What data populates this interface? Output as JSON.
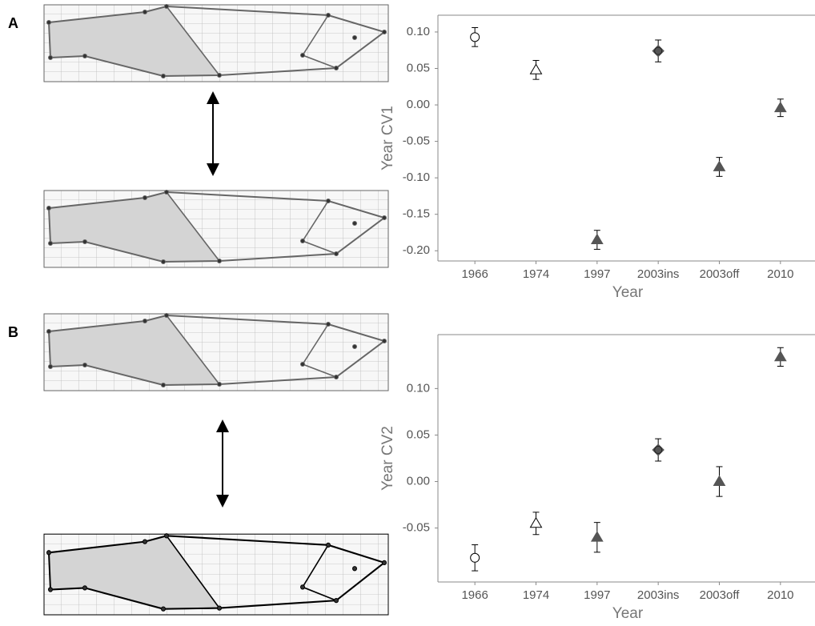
{
  "chart_data": [
    {
      "type": "errorbar",
      "panel_label": "A",
      "x_label": "Year",
      "y_label": "Year CV1",
      "categories": [
        "1966",
        "1974",
        "1997",
        "2003ins",
        "2003off",
        "2010"
      ],
      "values": [
        0.093,
        0.048,
        -0.185,
        0.074,
        -0.085,
        -0.004
      ],
      "errors": [
        0.013,
        0.013,
        0.013,
        0.015,
        0.013,
        0.012
      ],
      "markers": [
        "circle-open",
        "triangle-open",
        "triangle-filled",
        "diamond-filled",
        "triangle-filled",
        "triangle-filled"
      ],
      "color": "#555555",
      "ylim": [
        -0.214,
        0.123
      ],
      "yticks": [
        {
          "value": 0.1,
          "label": "0.10"
        },
        0.05,
        {
          "value": 0,
          "label": "0.00"
        },
        -0.05,
        {
          "value": -0.1,
          "label": "-0.10"
        },
        -0.15,
        {
          "value": -0.2,
          "label": "-0.20"
        }
      ]
    },
    {
      "type": "errorbar",
      "panel_label": "B",
      "x_label": "Year",
      "y_label": "Year CV2",
      "categories": [
        "1966",
        "1974",
        "1997",
        "2003ins",
        "2003off",
        "2010"
      ],
      "values": [
        -0.082,
        -0.045,
        -0.06,
        0.034,
        0.0,
        0.134
      ],
      "errors": [
        0.014,
        0.012,
        0.016,
        0.012,
        0.016,
        0.01
      ],
      "markers": [
        "circle-open",
        "triangle-open",
        "triangle-filled",
        "diamond-filled",
        "triangle-filled",
        "triangle-filled"
      ],
      "color": "#555555",
      "ylim": [
        -0.108,
        0.158
      ],
      "yticks": [
        {
          "value": 0.1,
          "label": "0.10"
        },
        0.05,
        {
          "value": 0,
          "label": "0.00"
        },
        -0.05
      ]
    }
  ]
}
